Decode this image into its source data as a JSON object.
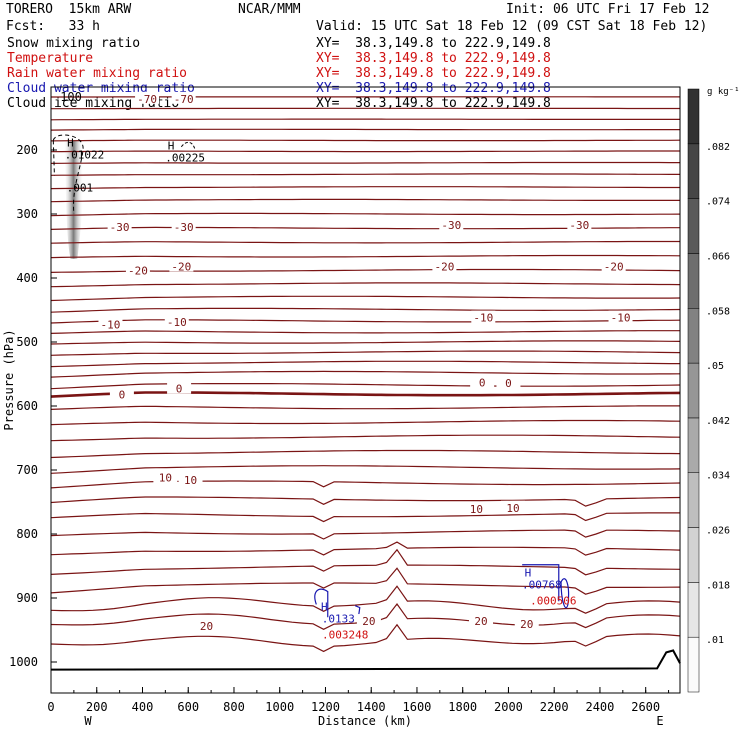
{
  "header": {
    "model": "TORERO  15km ARW",
    "org": "NCAR/MMM",
    "init": "Init: 06 UTC Fri 17 Feb 12",
    "fcst": "Fcst:   33 h",
    "valid": "Valid: 15 UTC Sat 18 Feb 12 (09 CST Sat 18 Feb 12)"
  },
  "legend": [
    {
      "label": "Snow mixing ratio",
      "xy": "XY=  38.3,149.8 to 222.9,149.8",
      "color": "#000000"
    },
    {
      "label": "Temperature",
      "xy": "XY=  38.3,149.8 to 222.9,149.8",
      "color": "#d01010"
    },
    {
      "label": "Rain water mixing ratio",
      "xy": "XY=  38.3,149.8 to 222.9,149.8",
      "color": "#d01010"
    },
    {
      "label": "Cloud water mixing ratio",
      "xy": "XY=  38.3,149.8 to 222.9,149.8",
      "color": "#1818b0"
    },
    {
      "label": "Cloud ice mixing ratio",
      "xy": "XY=  38.3,149.8 to 222.9,149.8",
      "color": "#000000"
    }
  ],
  "chart_data": {
    "type": "cross-section",
    "xlabel": "Distance (km)",
    "ylabel": "Pressure (hPa)",
    "xlim": [
      0,
      2750
    ],
    "ylim": [
      100,
      1050
    ],
    "x_ticks": [
      0,
      200,
      400,
      600,
      800,
      1000,
      1200,
      1400,
      1600,
      1800,
      2000,
      2200,
      2400,
      2600
    ],
    "y_ticks": [
      200,
      300,
      400,
      500,
      600,
      700,
      800,
      900,
      1000
    ],
    "west_label": "W",
    "east_label": "E",
    "colorbar": {
      "unit": "g kg⁻¹",
      "ticks": [
        ".01",
        ".018",
        ".026",
        ".034",
        ".042",
        ".05",
        ".058",
        ".066",
        ".074",
        ".082"
      ]
    },
    "temperature_labels": [
      {
        "text": "-70",
        "x": 420,
        "p": 120
      },
      {
        "text": "-70",
        "x": 580,
        "p": 120
      },
      {
        "text": "-30",
        "x": 300,
        "p": 320
      },
      {
        "text": "-30",
        "x": 580,
        "p": 320
      },
      {
        "text": "-30",
        "x": 1750,
        "p": 317
      },
      {
        "text": "-30",
        "x": 2310,
        "p": 317
      },
      {
        "text": "-20",
        "x": 380,
        "p": 388
      },
      {
        "text": "-20",
        "x": 570,
        "p": 382
      },
      {
        "text": "-20",
        "x": 1720,
        "p": 382
      },
      {
        "text": "-20",
        "x": 2460,
        "p": 382
      },
      {
        "text": "-10",
        "x": 260,
        "p": 473
      },
      {
        "text": "-10",
        "x": 550,
        "p": 469
      },
      {
        "text": "-10",
        "x": 1890,
        "p": 462
      },
      {
        "text": "-10",
        "x": 2490,
        "p": 462
      },
      {
        "text": "0",
        "x": 310,
        "p": 582
      },
      {
        "text": "0",
        "x": 560,
        "p": 573
      },
      {
        "text": "0",
        "x": 1885,
        "p": 563
      },
      {
        "text": "0",
        "x": 2000,
        "p": 564
      },
      {
        "text": "10",
        "x": 500,
        "p": 712
      },
      {
        "text": "10",
        "x": 610,
        "p": 716
      },
      {
        "text": "10",
        "x": 1860,
        "p": 761
      },
      {
        "text": "10",
        "x": 2020,
        "p": 759
      },
      {
        "text": "20",
        "x": 1390,
        "p": 936
      },
      {
        "text": "20",
        "x": 1880,
        "p": 936
      },
      {
        "text": "20",
        "x": 2080,
        "p": 941
      },
      {
        "text": "20",
        "x": 680,
        "p": 944
      }
    ],
    "maxima": [
      {
        "symbol": "H",
        "value": ".01022",
        "x": 120,
        "p": 210,
        "color": "#000000"
      },
      {
        "symbol": "",
        "value": ".001",
        "x": 100,
        "p": 262,
        "color": "#000000"
      },
      {
        "symbol": "H",
        "value": ".00225",
        "x": 560,
        "p": 215,
        "color": "#000000"
      },
      {
        "symbol": "H",
        "value": ".00768",
        "x": 2120,
        "p": 882,
        "color": "#1818b0"
      },
      {
        "symbol": "",
        "value": ".000506",
        "x": 2170,
        "p": 907,
        "color": "#d01010"
      },
      {
        "symbol": "H",
        "value": ".0133",
        "x": 1230,
        "p": 935,
        "color": "#1818b0"
      },
      {
        "symbol": "",
        "value": ".003248",
        "x": 1260,
        "p": 960,
        "color": "#d01010"
      }
    ]
  }
}
